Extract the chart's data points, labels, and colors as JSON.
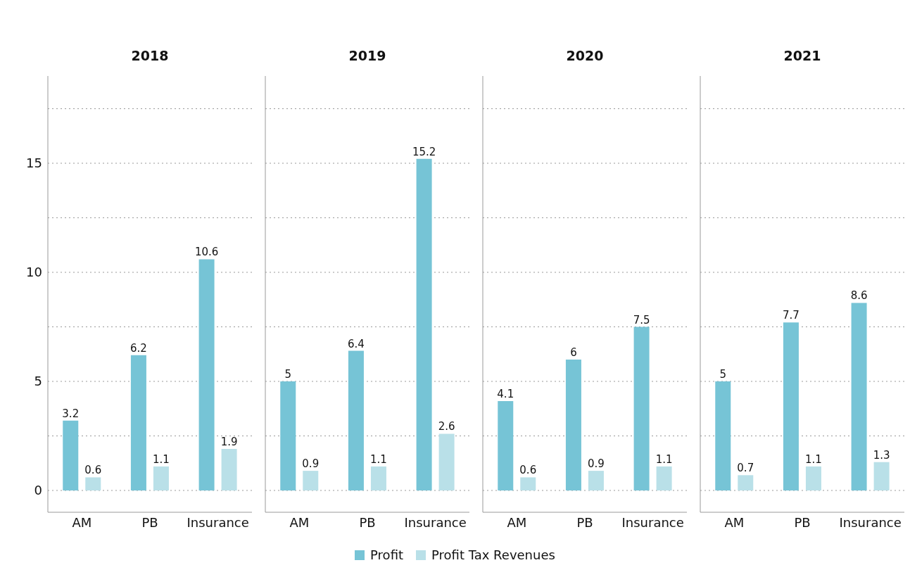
{
  "chart_data": [
    {
      "type": "bar",
      "title": "2018",
      "categories": [
        "AM",
        "PB",
        "Insurance"
      ],
      "series": [
        {
          "name": "Profit",
          "color": "#76c4d6",
          "values": [
            3.2,
            6.2,
            10.6
          ]
        },
        {
          "name": "Profit Tax Revenues",
          "color": "#b9e0e8",
          "values": [
            0.6,
            1.1,
            1.9
          ]
        }
      ],
      "ylim": [
        -1,
        19
      ],
      "yticks": [
        0,
        {
          "value": 2.5,
          "label": null
        },
        5,
        {
          "value": 7.5,
          "label": null
        },
        10,
        {
          "value": 12.5,
          "label": null
        },
        15,
        {
          "value": 17.5,
          "label": null
        }
      ],
      "grid": "y",
      "data_labels": true,
      "legend": "bottom"
    },
    {
      "type": "bar",
      "title": "2019",
      "categories": [
        "AM",
        "PB",
        "Insurance"
      ],
      "series": [
        {
          "name": "Profit",
          "color": "#76c4d6",
          "values": [
            5,
            6.4,
            15.2
          ]
        },
        {
          "name": "Profit Tax Revenues",
          "color": "#b9e0e8",
          "values": [
            0.9,
            1.1,
            2.6
          ]
        }
      ],
      "ylim": [
        -1,
        19
      ],
      "yticks": [
        0,
        {
          "value": 2.5,
          "label": null
        },
        5,
        {
          "value": 7.5,
          "label": null
        },
        10,
        {
          "value": 12.5,
          "label": null
        },
        15,
        {
          "value": 17.5,
          "label": null
        }
      ],
      "grid": "y",
      "data_labels": true,
      "legend": "bottom",
      "tick_labels": "x"
    },
    {
      "type": "bar",
      "title": "2020",
      "categories": [
        "AM",
        "PB",
        "Insurance"
      ],
      "series": [
        {
          "name": "Profit",
          "color": "#76c4d6",
          "values": [
            4.1,
            6,
            7.5
          ]
        },
        {
          "name": "Profit Tax Revenues",
          "color": "#b9e0e8",
          "values": [
            0.6,
            0.9,
            1.1
          ]
        }
      ],
      "ylim": [
        -1,
        19
      ],
      "yticks": [
        0,
        {
          "value": 2.5,
          "label": null
        },
        5,
        {
          "value": 7.5,
          "label": null
        },
        10,
        {
          "value": 12.5,
          "label": null
        },
        15,
        {
          "value": 17.5,
          "label": null
        }
      ],
      "grid": "y",
      "data_labels": true,
      "legend": "bottom",
      "tick_labels": "x"
    },
    {
      "type": "bar",
      "title": "2021",
      "categories": [
        "AM",
        "PB",
        "Insurance"
      ],
      "series": [
        {
          "name": "Profit",
          "color": "#76c4d6",
          "values": [
            5,
            7.7,
            8.6
          ]
        },
        {
          "name": "Profit Tax Revenues",
          "color": "#b9e0e8",
          "values": [
            0.7,
            1.1,
            1.3
          ]
        }
      ],
      "ylim": [
        -1,
        19
      ],
      "yticks": [
        0,
        {
          "value": 2.5,
          "label": null
        },
        5,
        {
          "value": 7.5,
          "label": null
        },
        10,
        {
          "value": 12.5,
          "label": null
        },
        15,
        {
          "value": 17.5,
          "label": null
        }
      ],
      "grid": "y",
      "data_labels": true,
      "legend": "bottom",
      "tick_labels": "x"
    }
  ]
}
